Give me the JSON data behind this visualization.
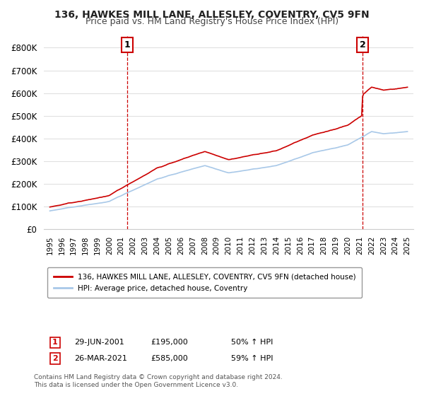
{
  "title_line1": "136, HAWKES MILL LANE, ALLESLEY, COVENTRY, CV5 9FN",
  "title_line2": "Price paid vs. HM Land Registry's House Price Index (HPI)",
  "ylabel": "",
  "background_color": "#ffffff",
  "plot_bg_color": "#ffffff",
  "grid_color": "#e0e0e0",
  "hpi_color": "#a8c8e8",
  "price_color": "#cc0000",
  "marker1_date_x": 2001.49,
  "marker1_label": "1",
  "marker1_value": 195000,
  "marker2_date_x": 2021.23,
  "marker2_label": "2",
  "marker2_value": 585000,
  "sale1_info": "29-JUN-2001     £195,000     50% ↑ HPI",
  "sale2_info": "26-MAR-2021     £585,000     59% ↑ HPI",
  "legend_line1": "136, HAWKES MILL LANE, ALLESLEY, COVENTRY, CV5 9FN (detached house)",
  "legend_line2": "HPI: Average price, detached house, Coventry",
  "footer1": "Contains HM Land Registry data © Crown copyright and database right 2024.",
  "footer2": "This data is licensed under the Open Government Licence v3.0.",
  "ylim_max": 850000,
  "yticks": [
    0,
    100000,
    200000,
    300000,
    400000,
    500000,
    600000,
    700000,
    800000
  ],
  "ytick_labels": [
    "£0",
    "£100K",
    "£200K",
    "£300K",
    "£400K",
    "£500K",
    "£600K",
    "£700K",
    "£800K"
  ],
  "xlim_min": 1994.5,
  "xlim_max": 2025.5
}
